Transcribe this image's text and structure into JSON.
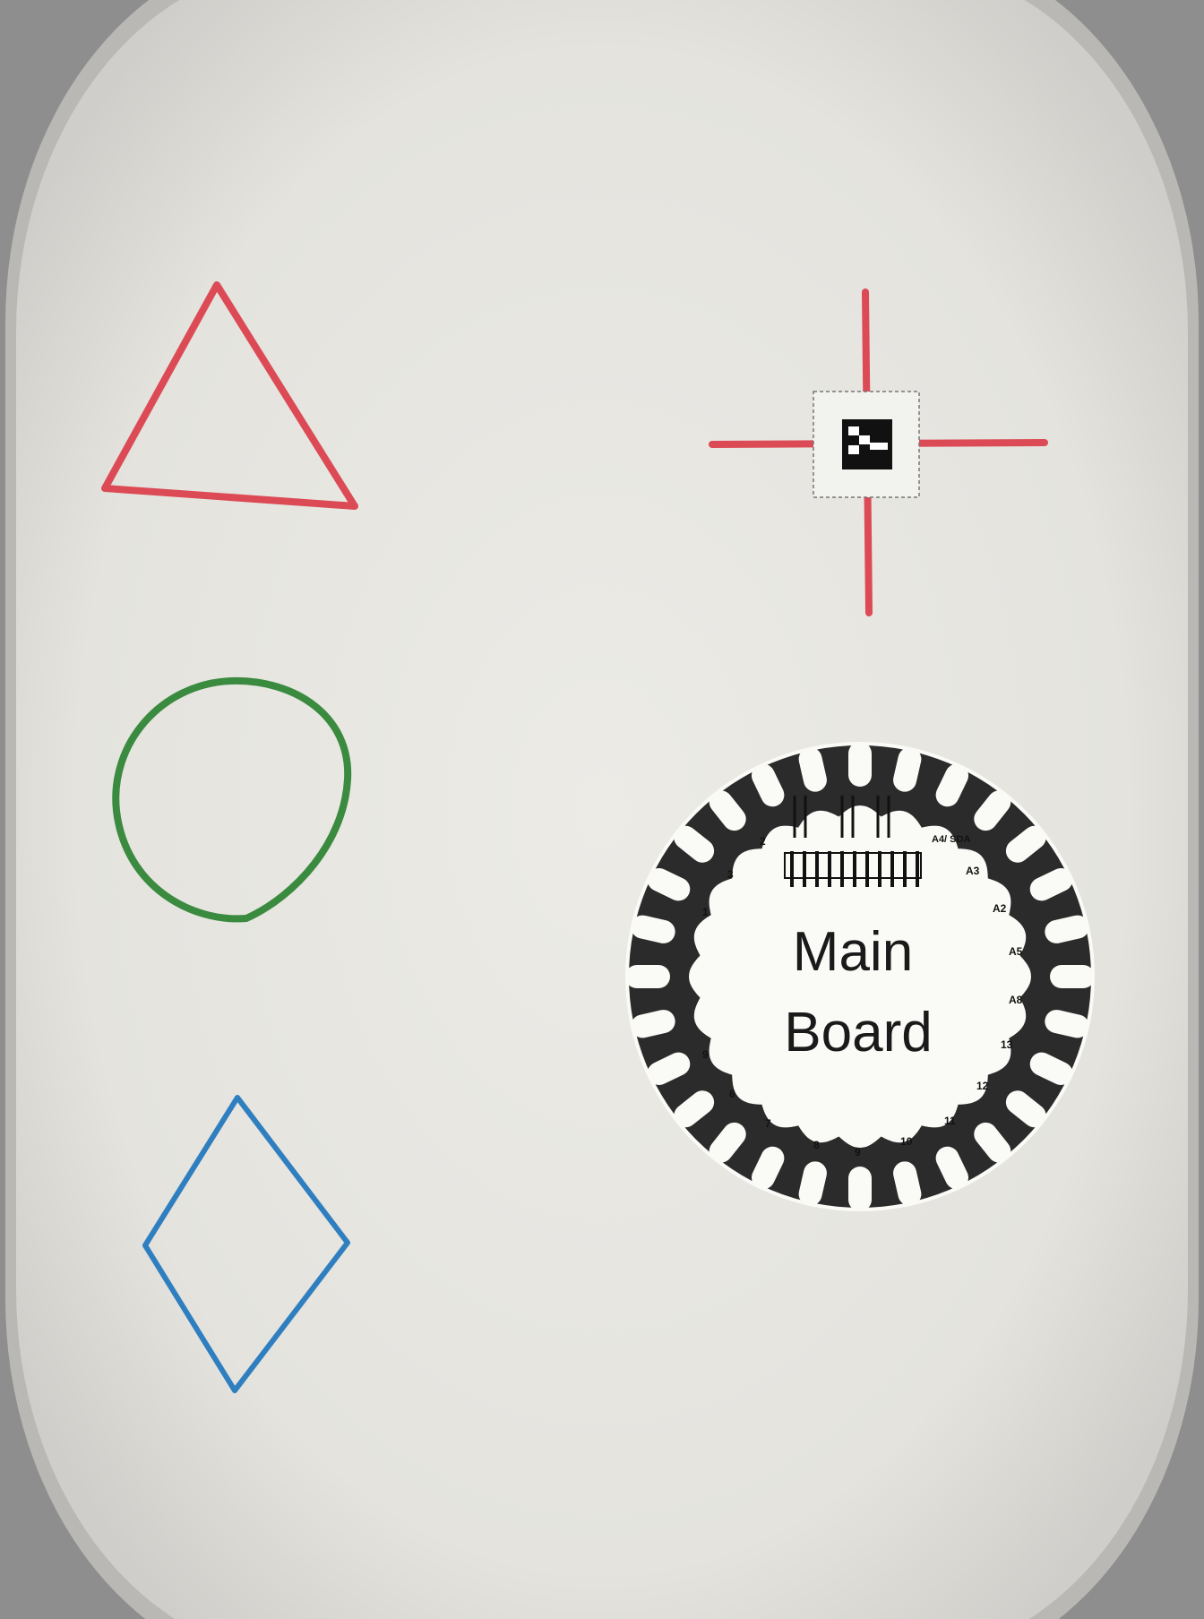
{
  "board": {
    "label_line1": "Main",
    "label_line2": "Board",
    "pin_labels": [
      "2",
      "3",
      "1",
      "9",
      "6",
      "7",
      "8",
      "9",
      "10",
      "11",
      "12",
      "13",
      "A8",
      "A5",
      "A2",
      "A3",
      "A4/ SDA"
    ]
  },
  "colors": {
    "fabric": "#e9e8e3",
    "hoop": "#8e8e8e",
    "thread_red": "#dc4a55",
    "thread_green": "#3a8a3f",
    "thread_blue": "#2f7fc0",
    "board_dark": "#2b2b2b",
    "board_light": "#fafaf7"
  },
  "icons": [
    "triangle-stitch",
    "circle-stitch",
    "diamond-stitch",
    "crosshair-stitch",
    "marker-tag-icon",
    "main-board-icon"
  ]
}
